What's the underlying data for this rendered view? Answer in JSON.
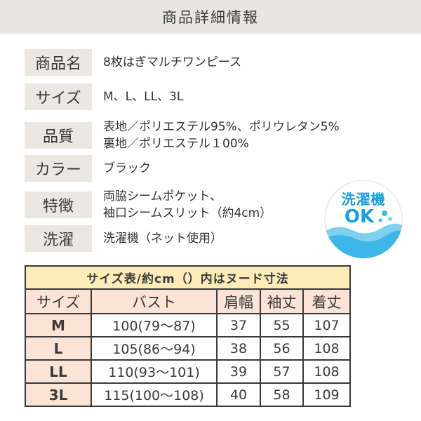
{
  "header": {
    "title": "商品詳細情報"
  },
  "specs": [
    {
      "label": "商品名",
      "lines": [
        "8枚はぎマルチワンピース"
      ]
    },
    {
      "label": "サイズ",
      "lines": [
        "M、L、LL、3L"
      ]
    },
    {
      "label": "品質",
      "lines": [
        "表地／ポリエステル95%、ポリウレタン5%",
        "裏地／ポリエステル１00%"
      ]
    },
    {
      "label": "カラー",
      "lines": [
        "ブラック"
      ]
    },
    {
      "label": "特徴",
      "lines": [
        "両脇シームポケット、",
        "袖口シームスリット（約4cm）"
      ]
    },
    {
      "label": "洗濯",
      "lines": [
        "洗濯機（ネット使用）"
      ]
    }
  ],
  "badge": {
    "line1": "洗濯機",
    "line2": "OK",
    "icon": "wave-bubbles-icon",
    "accent": "#1b9fdc"
  },
  "size_table": {
    "title": "サイズ表/約cm（）内はヌード寸法",
    "headers": [
      "サイズ",
      "バスト",
      "肩幅",
      "袖丈",
      "着丈"
    ],
    "rows": [
      [
        "M",
        "100(79～87)",
        "37",
        "55",
        "107"
      ],
      [
        "L",
        "105(86～94)",
        "38",
        "56",
        "108"
      ],
      [
        "LL",
        "110(93～101)",
        "39",
        "57",
        "108"
      ],
      [
        "3L",
        "115(100～108)",
        "40",
        "58",
        "109"
      ]
    ]
  }
}
